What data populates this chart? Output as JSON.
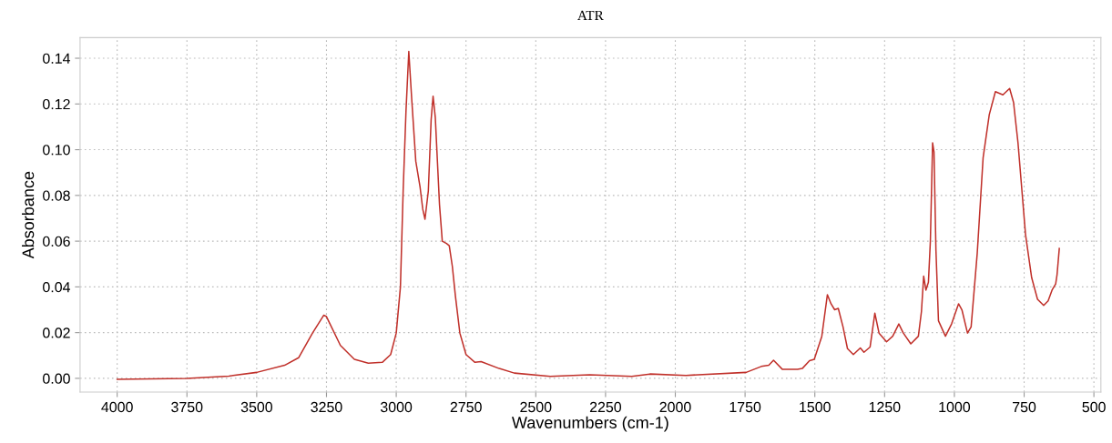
{
  "chart_data": {
    "type": "line",
    "title": "ATR",
    "xlabel": "Wavenumbers (cm-1)",
    "ylabel": "Absorbance",
    "xlim": [
      4133,
      475
    ],
    "ylim": [
      -0.006,
      0.149
    ],
    "xticks": [
      4000,
      3750,
      3500,
      3250,
      3000,
      2750,
      2500,
      2250,
      2000,
      1750,
      1500,
      1250,
      1000,
      750,
      500
    ],
    "yticks": [
      {
        "value": 0,
        "label": "0.00"
      },
      {
        "value": 0.02,
        "label": "0.02"
      },
      {
        "value": 0.04,
        "label": "0.04"
      },
      {
        "value": 0.06,
        "label": "0.06"
      },
      {
        "value": 0.08,
        "label": "0.08"
      },
      {
        "value": 0.1,
        "label": "0.10"
      },
      {
        "value": 0.12,
        "label": "0.12"
      },
      {
        "value": 0.14,
        "label": "0.14"
      }
    ],
    "grid": true,
    "line_style": "solid",
    "marker": "none",
    "series": [
      {
        "color": "#c0302a",
        "x": [
          4000,
          3750,
          3600,
          3500,
          3400,
          3350,
          3300,
          3260,
          3250,
          3200,
          3150,
          3100,
          3050,
          3020,
          3000,
          2985,
          2975,
          2965,
          2955,
          2945,
          2930,
          2915,
          2905,
          2897,
          2885,
          2875,
          2868,
          2860,
          2845,
          2835,
          2820,
          2810,
          2799,
          2788,
          2772,
          2750,
          2718,
          2696,
          2631,
          2577,
          2448,
          2307,
          2156,
          2091,
          1962,
          1746,
          1692,
          1665,
          1648,
          1616,
          1562,
          1545,
          1519,
          1502,
          1475,
          1455,
          1442,
          1429,
          1416,
          1399,
          1383,
          1362,
          1337,
          1324,
          1302,
          1285,
          1270,
          1243,
          1221,
          1199,
          1183,
          1156,
          1129,
          1118,
          1110,
          1102,
          1093,
          1086,
          1078,
          1073,
          1066,
          1057,
          1032,
          1010,
          985,
          973,
          953,
          940,
          918,
          897,
          875,
          853,
          826,
          802,
          788,
          772,
          745,
          723,
          702,
          680,
          664,
          650,
          637,
          632,
          624
        ],
        "values": [
          -0.0004,
          0.0,
          0.001,
          0.0026,
          0.0057,
          0.009,
          0.0198,
          0.0276,
          0.027,
          0.0144,
          0.0083,
          0.0066,
          0.007,
          0.0104,
          0.0198,
          0.04,
          0.083,
          0.117,
          0.143,
          0.123,
          0.095,
          0.084,
          0.074,
          0.0696,
          0.082,
          0.113,
          0.1234,
          0.114,
          0.076,
          0.06,
          0.059,
          0.058,
          0.049,
          0.036,
          0.0198,
          0.0104,
          0.007,
          0.0073,
          0.0043,
          0.0023,
          0.0009,
          0.0016,
          0.0009,
          0.0019,
          0.0013,
          0.0026,
          0.0052,
          0.0057,
          0.0079,
          0.0039,
          0.0039,
          0.0043,
          0.0077,
          0.0083,
          0.0184,
          0.0366,
          0.0326,
          0.03,
          0.0306,
          0.0225,
          0.013,
          0.0104,
          0.0133,
          0.0114,
          0.0137,
          0.0285,
          0.0198,
          0.016,
          0.0184,
          0.0238,
          0.0198,
          0.0151,
          0.0184,
          0.0292,
          0.0447,
          0.0386,
          0.042,
          0.06,
          0.103,
          0.099,
          0.056,
          0.0252,
          0.0184,
          0.0238,
          0.0326,
          0.03,
          0.0198,
          0.0225,
          0.0548,
          0.0965,
          0.1153,
          0.1254,
          0.124,
          0.1268,
          0.1207,
          0.103,
          0.0629,
          0.044,
          0.0346,
          0.0319,
          0.0339,
          0.0386,
          0.0413,
          0.0454,
          0.0568
        ]
      }
    ]
  }
}
